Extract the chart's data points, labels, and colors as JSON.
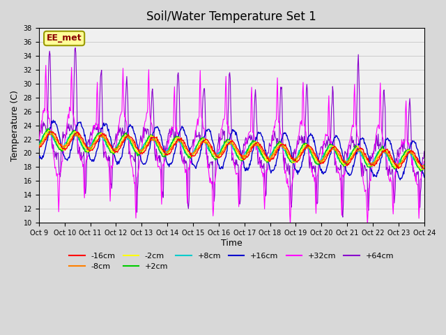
{
  "title": "Soil/Water Temperature Set 1",
  "xlabel": "Time",
  "ylabel": "Temperature (C)",
  "annotation": "EE_met",
  "ylim": [
    10,
    38
  ],
  "yticks": [
    10,
    12,
    14,
    16,
    18,
    20,
    22,
    24,
    26,
    28,
    30,
    32,
    34,
    36,
    38
  ],
  "xtick_labels": [
    "Oct 9",
    "Oct 10",
    "Oct 11",
    "Oct 12",
    "Oct 13",
    "Oct 14",
    "Oct 15",
    "Oct 16",
    "Oct 17",
    "Oct 18",
    "Oct 19",
    "Oct 20",
    "Oct 21",
    "Oct 22",
    "Oct 23",
    "Oct 24"
  ],
  "series_labels": [
    "-16cm",
    "-8cm",
    "-2cm",
    "+2cm",
    "+8cm",
    "+16cm",
    "+32cm",
    "+64cm"
  ],
  "series_colors": [
    "#ff0000",
    "#ff8000",
    "#ffff00",
    "#00cc00",
    "#00cccc",
    "#0000cc",
    "#ff00ff",
    "#8800cc"
  ],
  "bg_color": "#d8d8d8",
  "plot_bg_color": "#f0f0f0",
  "n_days": 15,
  "points_per_day": 48
}
